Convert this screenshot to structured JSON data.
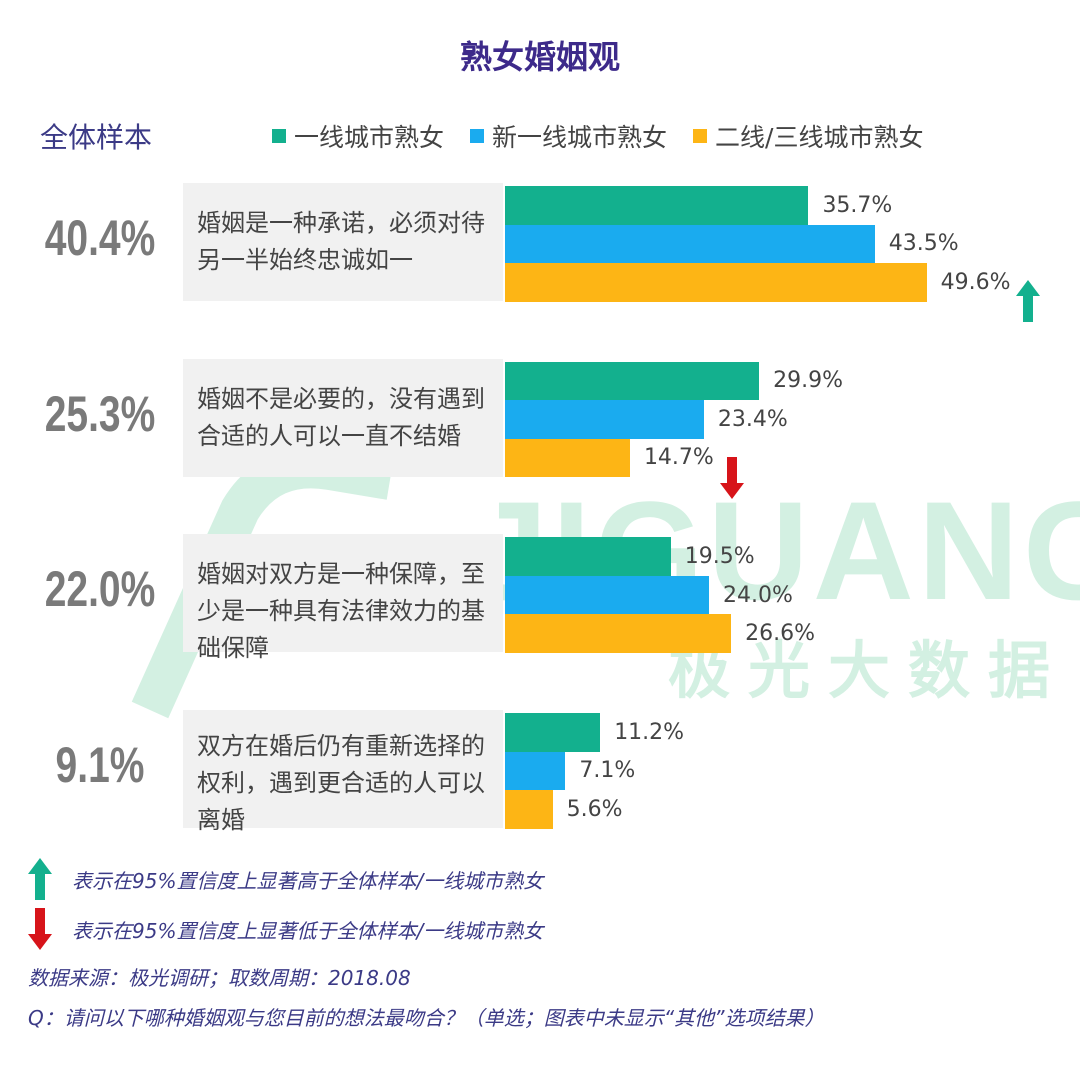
{
  "chart_data": {
    "type": "bar",
    "orientation": "horizontal",
    "title": "熟女婚姻观",
    "total_label": "全体样本",
    "categories": [
      "婚姻是一种承诺，必须对待另一半始终忠诚如一",
      "婚姻不是必要的，没有遇到合适的人可以一直不结婚",
      "婚姻对双方是一种保障，至少是一种具有法律效力的基础保障",
      "双方在婚后仍有重新选择的权利，遇到更合适的人可以离婚"
    ],
    "totals": [
      40.4,
      25.3,
      22,
      9.1
    ],
    "total_labels": [
      "40.4%",
      "25.3%",
      "22.0%",
      "9.1%"
    ],
    "series": [
      {
        "name": "一线城市熟女",
        "color": "#13b08e",
        "values": [
          35.7,
          29.9,
          19.5,
          11.2
        ],
        "value_labels": [
          "35.7%",
          "29.9%",
          "19.5%",
          "11.2%"
        ]
      },
      {
        "name": "新一线城市熟女",
        "color": "#1aabef",
        "values": [
          43.5,
          23.4,
          24,
          7.1
        ],
        "value_labels": [
          "43.5%",
          "23.4%",
          "24.0%",
          "7.1%"
        ]
      },
      {
        "name": "二线/三线城市熟女",
        "color": "#fdb515",
        "values": [
          49.6,
          14.7,
          26.6,
          5.6
        ],
        "value_labels": [
          "49.6%",
          "14.7%",
          "26.6%",
          "5.6%"
        ],
        "significance": [
          "up",
          "down",
          null,
          null
        ]
      }
    ],
    "notes": [
      {
        "direction": "up",
        "text": "表示在95%置信度上显著高于全体样本/一线城市熟女"
      },
      {
        "direction": "down",
        "text": "表示在95%置信度上显著低于全体样本/一线城市熟女"
      }
    ],
    "source": "数据来源：极光调研；取数周期：2018.08",
    "question": "Q：请问以下哪种婚姻观与您目前的想法最吻合？（单选；图表中未显示“其他”选项结果）",
    "watermark": {
      "text": "JIGUANG",
      "subtext": "极光大数据"
    }
  }
}
